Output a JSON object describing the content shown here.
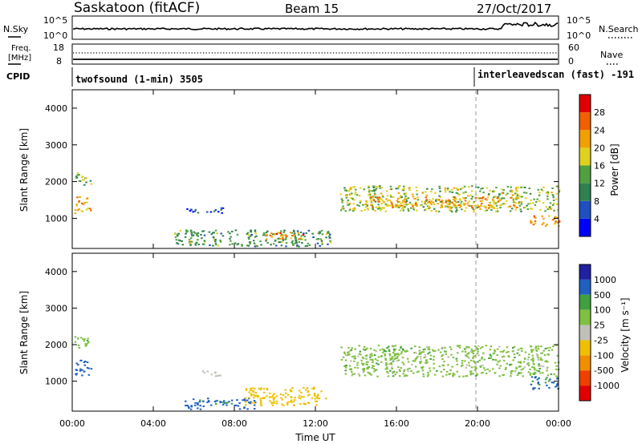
{
  "header": {
    "station": "Saskatoon (fitACF)",
    "beam": "Beam 15",
    "date": "27/Oct/2017"
  },
  "noise_panel": {
    "left_label": "N.Sky",
    "left_ticks": [
      "10^5",
      "10^0"
    ],
    "right_label": "N.Search",
    "right_ticks": [
      "10^5",
      "10^0"
    ]
  },
  "freq_panel": {
    "left_label_1": "Freq.",
    "left_label_2": "[MHz]",
    "left_ticks": [
      "18",
      "8"
    ],
    "right_label": "Nave",
    "right_ticks": [
      "60",
      "0"
    ]
  },
  "cpid_panel": {
    "label": "CPID",
    "modes": [
      {
        "name": "twofsound (1-min) 3505",
        "start_hour": 0
      },
      {
        "name": "interleavedscan (fast) -191",
        "start_hour": 20.0
      }
    ]
  },
  "colors": {
    "power_scale": [
      "#0000ff",
      "#2050c0",
      "#308050",
      "#50a040",
      "#e0d020",
      "#f0a000",
      "#f06000",
      "#e00000"
    ],
    "velocity_scale": [
      "#2020a0",
      "#2060c0",
      "#40a040",
      "#80c040",
      "#c0c0b8",
      "#f0c000",
      "#f09000",
      "#f04000",
      "#e00000"
    ]
  },
  "chart_data": [
    {
      "type": "heatmap",
      "name": "Power",
      "ylabel": "Slant Range [km]",
      "y_ticks": [
        "1000",
        "2000",
        "3000",
        "4000"
      ],
      "ylim": [
        180,
        4500
      ],
      "xlim": [
        0,
        24
      ],
      "colorbar_label": "Power [dB]",
      "colorbar_ticks": [
        "4",
        "8",
        "12",
        "16",
        "20",
        "24",
        "28"
      ],
      "colorbar_range": [
        0,
        32
      ],
      "regions": [
        {
          "t0": 0.1,
          "t1": 0.9,
          "r0": 1900,
          "r1": 2250,
          "value": 14
        },
        {
          "t0": 0.1,
          "t1": 0.9,
          "r0": 1150,
          "r1": 1600,
          "value": 22
        },
        {
          "t0": 5.6,
          "t1": 7.4,
          "r0": 1150,
          "r1": 1300,
          "value": 6
        },
        {
          "t0": 5.0,
          "t1": 12.8,
          "r0": 250,
          "r1": 700,
          "value": 12
        },
        {
          "t0": 9.5,
          "t1": 11.5,
          "r0": 450,
          "r1": 650,
          "value": 24
        },
        {
          "t0": 13.2,
          "t1": 24,
          "r0": 1200,
          "r1": 1900,
          "value": 16
        },
        {
          "t0": 14.5,
          "t1": 22.0,
          "r0": 1300,
          "r1": 1600,
          "value": 22
        },
        {
          "t0": 22.5,
          "t1": 24,
          "r0": 800,
          "r1": 1100,
          "value": 22
        }
      ]
    },
    {
      "type": "heatmap",
      "name": "Velocity",
      "ylabel": "Slant Range [km]",
      "y_ticks": [
        "1000",
        "2000",
        "3000",
        "4000"
      ],
      "ylim": [
        180,
        4500
      ],
      "xlim": [
        0,
        24
      ],
      "xlabel": "Time UT",
      "x_ticks": [
        "00:00",
        "04:00",
        "08:00",
        "12:00",
        "16:00",
        "20:00",
        "00:00"
      ],
      "colorbar_label": "Velocity [m s⁻¹]",
      "colorbar_ticks": [
        "1000",
        "500",
        "100",
        "25",
        "-25",
        "-100",
        "-500",
        "-1000"
      ],
      "regions": [
        {
          "t0": 0.1,
          "t1": 0.9,
          "r0": 1900,
          "r1": 2250,
          "value": 0
        },
        {
          "t0": 0.1,
          "t1": 0.9,
          "r0": 1150,
          "r1": 1600,
          "value": 150
        },
        {
          "t0": 6.3,
          "t1": 7.3,
          "r0": 1150,
          "r1": 1300,
          "value": -80
        },
        {
          "t0": 5.5,
          "t1": 9.0,
          "r0": 250,
          "r1": 550,
          "value": 120
        },
        {
          "t0": 8.5,
          "t1": 12.5,
          "r0": 350,
          "r1": 850,
          "value": -150
        },
        {
          "t0": 13.2,
          "t1": 24,
          "r0": 1150,
          "r1": 2000,
          "value": 0
        },
        {
          "t0": 22.6,
          "t1": 24,
          "r0": 800,
          "r1": 1150,
          "value": 120
        }
      ]
    }
  ]
}
